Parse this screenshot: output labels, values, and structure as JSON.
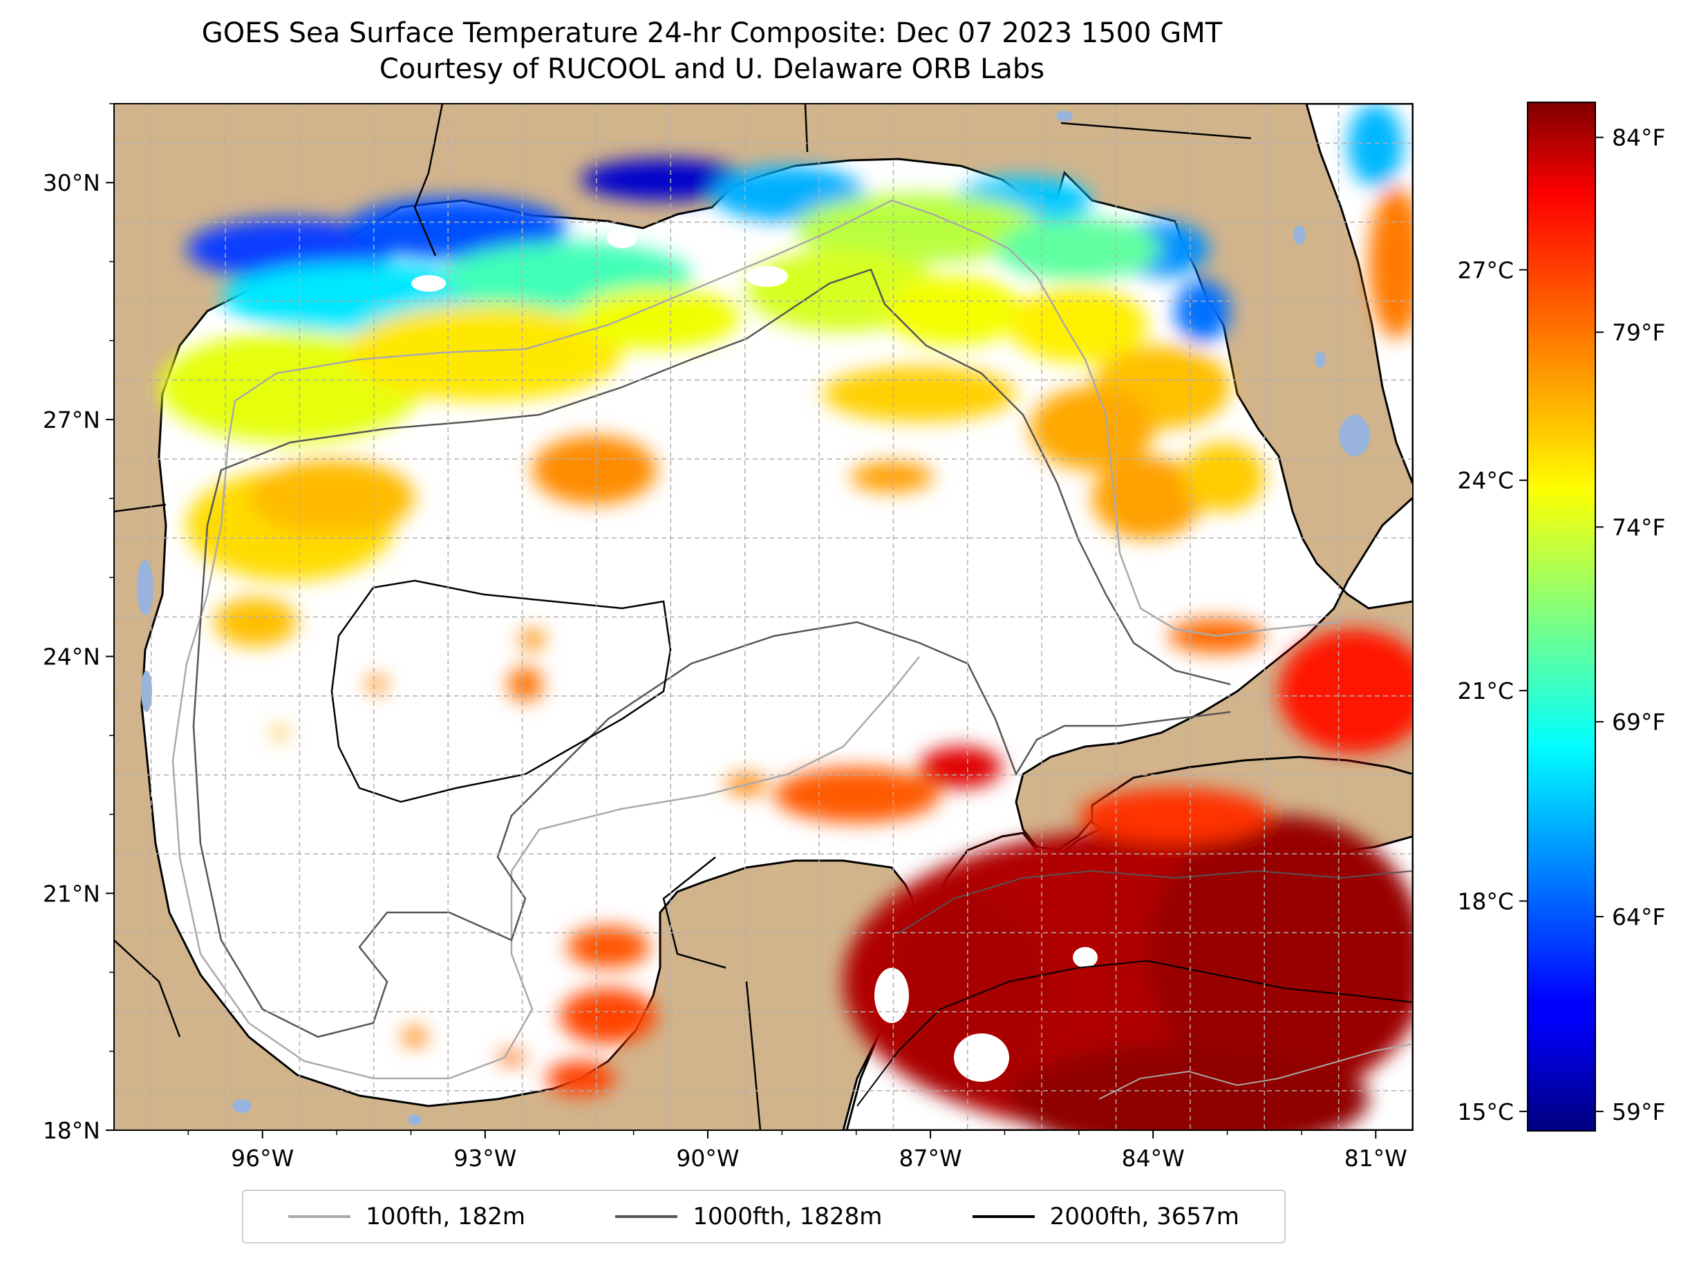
{
  "title": {
    "line1": "GOES Sea Surface Temperature 24-hr Composite: Dec 07 2023 1500 GMT",
    "line2": "Courtesy of RUCOOL and U. Delaware ORB Labs"
  },
  "map": {
    "lon_range": [
      -98,
      -80.5
    ],
    "lat_range": [
      18,
      31
    ],
    "x_ticks": [
      {
        "lon": -96,
        "label": "96°W"
      },
      {
        "lon": -93,
        "label": "93°W"
      },
      {
        "lon": -90,
        "label": "90°W"
      },
      {
        "lon": -87,
        "label": "87°W"
      },
      {
        "lon": -84,
        "label": "84°W"
      },
      {
        "lon": -81,
        "label": "81°W"
      }
    ],
    "y_ticks": [
      {
        "lat": 30,
        "label": "30°N"
      },
      {
        "lat": 27,
        "label": "27°N"
      },
      {
        "lat": 24,
        "label": "24°N"
      },
      {
        "lat": 21,
        "label": "21°N"
      },
      {
        "lat": 18,
        "label": "18°N"
      }
    ],
    "gridlines": true,
    "colors": {
      "land": "#d2b48c",
      "ocean_no_data": "#ffffff",
      "lakes": "#98b4dc",
      "grid": "#b0b0b0"
    }
  },
  "colorbar": {
    "colormap": "jet",
    "range_f": [
      58.5,
      84.9
    ],
    "fahrenheit_ticks": [
      {
        "value": 84,
        "label": "84°F"
      },
      {
        "value": 79,
        "label": "79°F"
      },
      {
        "value": 74,
        "label": "74°F"
      },
      {
        "value": 69,
        "label": "69°F"
      },
      {
        "value": 64,
        "label": "64°F"
      },
      {
        "value": 59,
        "label": "59°F"
      }
    ],
    "celsius_ticks": [
      {
        "value": 27,
        "label": "27°C"
      },
      {
        "value": 24,
        "label": "24°C"
      },
      {
        "value": 21,
        "label": "21°C"
      },
      {
        "value": 18,
        "label": "18°C"
      },
      {
        "value": 15,
        "label": "15°C"
      }
    ]
  },
  "legend": {
    "placement": "bottom-center",
    "items": [
      {
        "label": "100fth, 182m",
        "color": "#a9a9a9"
      },
      {
        "label": "1000fth, 1828m",
        "color": "#555555"
      },
      {
        "label": "2000fth, 3657m",
        "color": "#000000"
      }
    ]
  }
}
